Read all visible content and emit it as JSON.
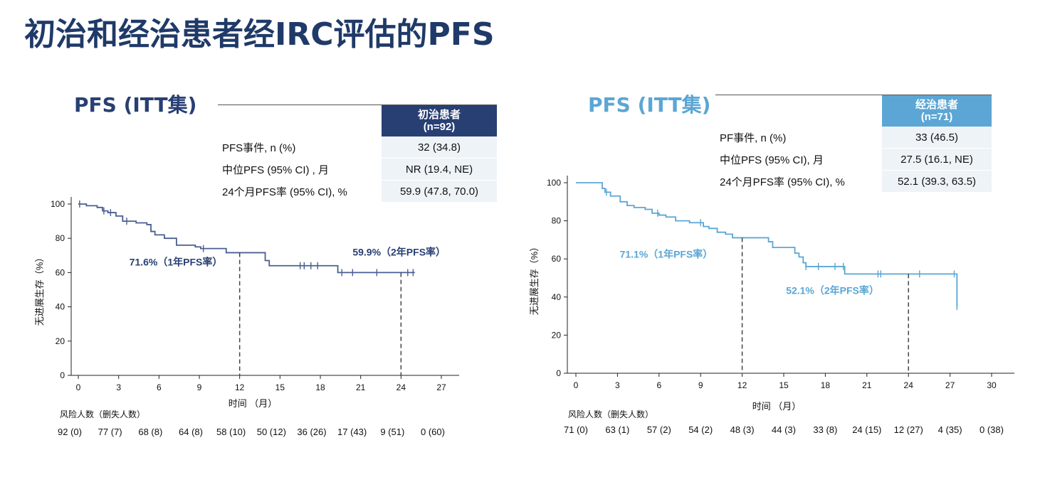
{
  "title": "初治和经治患者经IRC评估的PFS",
  "panels": [
    {
      "heading": "PFS (ITT集)",
      "color": "#283f73",
      "table": {
        "group_label": "初治患者",
        "group_n": "(n=92)",
        "rows": [
          {
            "label": "PFS事件, n (%)",
            "value": "32 (34.8)"
          },
          {
            "label": "中位PFS (95% CI) , 月",
            "value": "NR (19.4, NE)"
          },
          {
            "label": "24个月PFS率 (95% CI), %",
            "value": "59.9 (47.8, 70.0)"
          }
        ]
      },
      "risk_header": "风险人数（删失人数）",
      "risk": [
        "92 (0)",
        "77 (7)",
        "68 (8)",
        "64 (8)",
        "58 (10)",
        "50 (12)",
        "36 (26)",
        "17 (43)",
        "9 (51)",
        "0 (60)"
      ]
    },
    {
      "heading": "PFS (ITT集)",
      "color": "#5ba6d4",
      "table": {
        "group_label": "经治患者",
        "group_n": "(n=71)",
        "rows": [
          {
            "label": "PF事件, n (%)",
            "value": "33 (46.5)"
          },
          {
            "label": "中位PFS (95% CI), 月",
            "value": "27.5 (16.1, NE)"
          },
          {
            "label": "24个月PFS率 (95% CI), %",
            "value": "52.1  (39.3, 63.5)"
          }
        ]
      },
      "risk_header": "风险人数（删失人数）",
      "risk": [
        "71 (0)",
        "63 (1)",
        "57 (2)",
        "54 (2)",
        "48 (3)",
        "44 (3)",
        "33 (8)",
        "24 (15)",
        "12 (27)",
        "4 (35)",
        "0 (38)"
      ]
    }
  ],
  "chart_data": [
    {
      "type": "line",
      "subtype": "kaplan-meier-step",
      "title": "PFS (ITT集)",
      "xlabel": "时间 （月）",
      "ylabel": "无进展生存（%）",
      "xlim": [
        0,
        27
      ],
      "ylim": [
        0,
        100
      ],
      "xticks": [
        0,
        3,
        6,
        9,
        12,
        15,
        18,
        21,
        24,
        27
      ],
      "yticks": [
        0,
        20,
        40,
        60,
        80,
        100
      ],
      "color": "#4a5f91",
      "series": [
        {
          "name": "初治患者",
          "x": [
            0,
            0.6,
            1.4,
            1.8,
            2.2,
            2.8,
            3.3,
            4.3,
            5.1,
            5.4,
            5.7,
            6.4,
            7.3,
            8.7,
            9.1,
            11.0,
            13.9,
            14.2,
            19.3,
            25.0
          ],
          "y": [
            100,
            99,
            98,
            96,
            95,
            93,
            90,
            89,
            88,
            84,
            82,
            80,
            76,
            75,
            74,
            71.6,
            67,
            64,
            60,
            59.9
          ]
        }
      ],
      "censor_x": [
        0.1,
        1.9,
        2.4,
        3.6,
        9.3,
        16.5,
        16.8,
        17.3,
        17.8,
        19.6,
        20.4,
        22.2,
        24.5,
        24.9
      ],
      "annotations": [
        {
          "text": "71.6%（1年PFS率）",
          "x": 12,
          "y": 71.6
        },
        {
          "text": "59.9%（2年PFS率）",
          "x": 24,
          "y": 59.9
        }
      ]
    },
    {
      "type": "line",
      "subtype": "kaplan-meier-step",
      "title": "PFS (ITT集)",
      "xlabel": "时间 （月）",
      "ylabel": "无进展生存（%）",
      "xlim": [
        0,
        30
      ],
      "ylim": [
        0,
        100
      ],
      "xticks": [
        0,
        3,
        6,
        9,
        12,
        15,
        18,
        21,
        24,
        27,
        30
      ],
      "yticks": [
        0,
        20,
        40,
        60,
        80,
        100
      ],
      "color": "#5ba6d4",
      "series": [
        {
          "name": "经治患者",
          "x": [
            0,
            1.9,
            2.1,
            2.5,
            3.2,
            3.7,
            4.2,
            5.0,
            5.5,
            6.0,
            6.5,
            7.2,
            8.2,
            9.2,
            9.6,
            10.2,
            10.8,
            11.3,
            13.6,
            13.9,
            14.2,
            15.8,
            16.1,
            16.4,
            16.6,
            19.4,
            27.5
          ],
          "y": [
            100,
            97,
            95,
            93,
            90,
            88,
            87,
            86,
            84,
            83,
            82,
            80,
            79,
            77,
            76,
            74,
            73,
            71.1,
            71.1,
            69,
            66,
            63,
            61,
            58,
            56,
            52.1,
            35
          ]
        }
      ],
      "censor_x": [
        2.2,
        5.9,
        9.0,
        16.6,
        17.5,
        18.7,
        19.3,
        21.8,
        22.0,
        24.8,
        27.3,
        27.5
      ],
      "annotations": [
        {
          "text": "71.1%（1年PFS率）",
          "x": 12,
          "y": 71.1
        },
        {
          "text": "52.1%（2年PFS率）",
          "x": 24,
          "y": 52.1
        }
      ]
    }
  ]
}
